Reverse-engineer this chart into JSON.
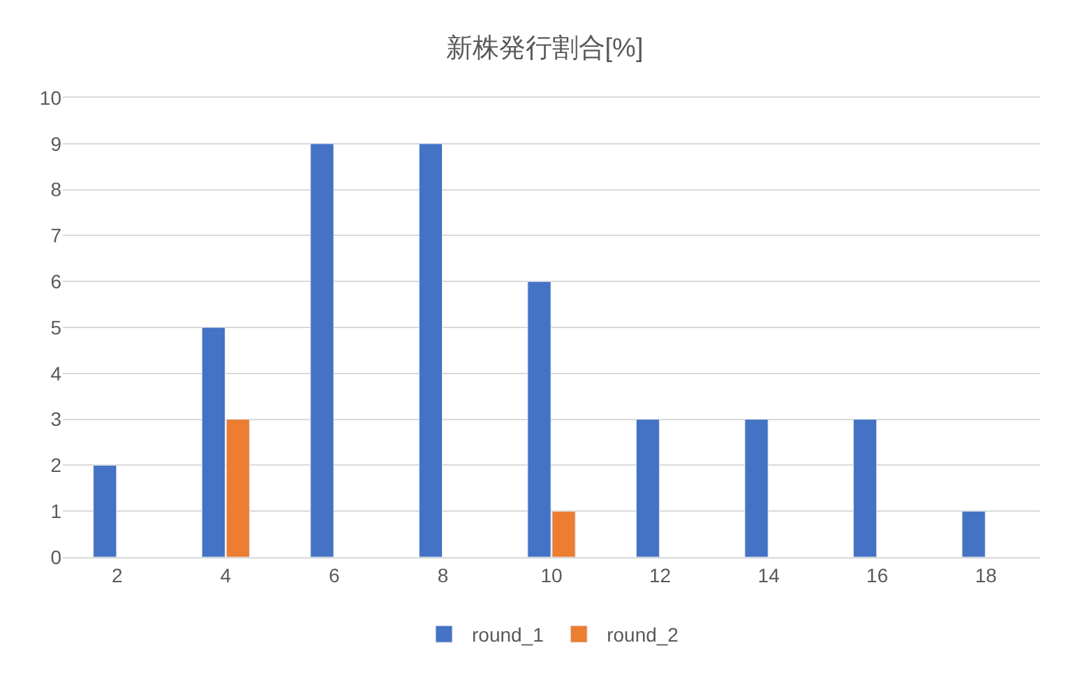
{
  "chart_data": {
    "type": "bar",
    "title": "新株発行割合[%]",
    "categories": [
      "2",
      "4",
      "6",
      "8",
      "10",
      "12",
      "14",
      "16",
      "18"
    ],
    "series": [
      {
        "name": "round_1",
        "color": "#4472c4",
        "values": [
          2,
          5,
          9,
          9,
          6,
          3,
          3,
          3,
          1
        ]
      },
      {
        "name": "round_2",
        "color": "#ed7d31",
        "values": [
          null,
          3,
          null,
          null,
          1,
          null,
          null,
          null,
          null
        ]
      }
    ],
    "ylim": [
      0,
      10
    ],
    "yticks": [
      0,
      1,
      2,
      3,
      4,
      5,
      6,
      7,
      8,
      9,
      10
    ],
    "grid": "y",
    "legend": "bottom"
  }
}
